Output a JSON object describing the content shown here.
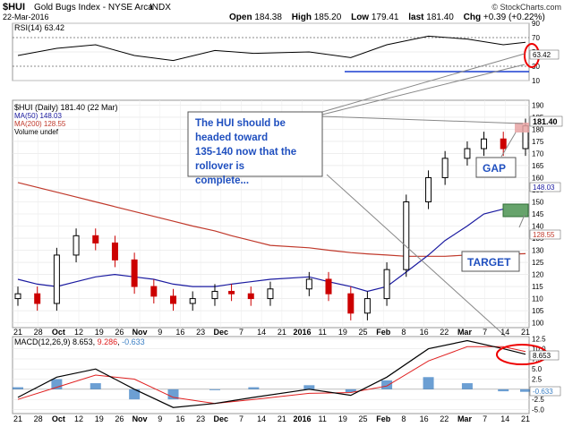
{
  "header": {
    "symbol": "$HUI",
    "name": "Gold Bugs Index - NYSE Arca",
    "exchange": "INDX",
    "date": "22-Mar-2016",
    "open_label": "Open",
    "open": "184.38",
    "high_label": "High",
    "high": "185.20",
    "low_label": "Low",
    "low": "179.41",
    "last_label": "last",
    "last": "181.40",
    "chg_label": "Chg",
    "chg": "+0.39 (+0.22%)",
    "credit": "© StockCharts.com"
  },
  "rsi": {
    "legend": "RSI(14) 63.42",
    "value_tag": "63.42",
    "ticks": [
      "90",
      "70",
      "50",
      "30",
      "10"
    ]
  },
  "price": {
    "legend": {
      "main": "$HUI (Daily) 181.40 (22 Mar)",
      "ma50": "MA(50) 148.03",
      "ma200": "MA(200) 128.55",
      "volume": "Volume undef"
    },
    "last_tag": "181.40",
    "ma50_tag": "148.03",
    "ma200_tag": "128.55",
    "ticks": [
      "190",
      "185",
      "180",
      "175",
      "170",
      "165",
      "160",
      "155",
      "150",
      "145",
      "140",
      "135",
      "130",
      "125",
      "120",
      "115",
      "110",
      "105",
      "100"
    ]
  },
  "annotations": {
    "forecast": "The HUI should be headed toward 135-140 now that the rollover is complete...",
    "gap": "GAP",
    "target": "TARGET"
  },
  "macd": {
    "legend_label": "MACD(12,26,9)",
    "macd_val": "8.653",
    "signal_val": "9.286",
    "hist_val": "-0.633",
    "value_tag": "8.653",
    "hist_tag": "-0.633",
    "ticks": [
      "12.5",
      "10.0",
      "7.5",
      "5.0",
      "2.5",
      "0.0",
      "-2.5",
      "-5.0"
    ]
  },
  "xaxis": [
    "21",
    "28",
    "Oct",
    "12",
    "19",
    "26",
    "Nov",
    "9",
    "16",
    "23",
    "Dec",
    "7",
    "14",
    "21",
    "2016",
    "11",
    "19",
    "25",
    "Feb",
    "8",
    "16",
    "22",
    "Mar",
    "7",
    "14",
    "21"
  ],
  "colors": {
    "up": "#000000",
    "down": "#cc0000",
    "ma50": "#1a1aa0",
    "ma200": "#c0392b",
    "annot": "#1f4fbf",
    "highlight": "#e8a3a3",
    "target": "#66a36b",
    "signal": "#e02020",
    "hist": "#3b7fc4"
  },
  "chart_data": [
    {
      "type": "line",
      "name": "RSI(14)",
      "ylim": [
        10,
        90
      ],
      "x": [
        "2015-09-21",
        "2015-10-05",
        "2015-10-19",
        "2015-11-02",
        "2015-11-16",
        "2015-12-01",
        "2015-12-15",
        "2016-01-04",
        "2016-01-19",
        "2016-02-01",
        "2016-02-16",
        "2016-03-01",
        "2016-03-14",
        "2016-03-22"
      ],
      "values": [
        45,
        55,
        60,
        45,
        38,
        52,
        48,
        50,
        42,
        60,
        72,
        68,
        60,
        63.42
      ],
      "reference_lines": [
        70,
        30
      ]
    },
    {
      "type": "candlestick",
      "title": "$HUI (Daily) 181.40 (22 Mar)",
      "ylim": [
        98,
        192
      ],
      "x": [
        "2015-09-21",
        "2015-09-28",
        "2015-10-05",
        "2015-10-12",
        "2015-10-19",
        "2015-10-26",
        "2015-11-02",
        "2015-11-09",
        "2015-11-16",
        "2015-11-23",
        "2015-12-01",
        "2015-12-07",
        "2015-12-14",
        "2015-12-21",
        "2016-01-04",
        "2016-01-11",
        "2016-01-19",
        "2016-01-25",
        "2016-02-01",
        "2016-02-08",
        "2016-02-16",
        "2016-02-22",
        "2016-03-01",
        "2016-03-07",
        "2016-03-14",
        "2016-03-22"
      ],
      "close": [
        112,
        108,
        128,
        136,
        133,
        126,
        115,
        111,
        108,
        110,
        113,
        112,
        110,
        114,
        118,
        112,
        104,
        110,
        122,
        150,
        160,
        168,
        172,
        176,
        172,
        181.4
      ],
      "series": [
        {
          "name": "MA(50)",
          "values": [
            118,
            116,
            115,
            117,
            119,
            120,
            119,
            118,
            116,
            115,
            115,
            116,
            117,
            118,
            119,
            117,
            115,
            113,
            115,
            121,
            128,
            134,
            140,
            145,
            147,
            148.03
          ]
        },
        {
          "name": "MA(200)",
          "values": [
            158,
            156,
            154,
            152,
            150,
            148,
            146,
            144,
            142,
            140,
            138,
            136,
            134,
            132,
            131,
            130,
            129,
            128.5,
            128,
            127.5,
            127.5,
            127.5,
            128,
            128,
            128.3,
            128.55
          ]
        }
      ],
      "annotations": {
        "gap_zone": [
          176,
          180
        ],
        "target_zone": [
          135,
          140
        ]
      }
    },
    {
      "type": "line",
      "name": "MACD(12,26,9)",
      "ylim": [
        -6,
        13
      ],
      "x": [
        "2015-09-21",
        "2015-10-05",
        "2015-10-19",
        "2015-11-02",
        "2015-11-16",
        "2015-12-01",
        "2015-12-15",
        "2016-01-04",
        "2016-01-19",
        "2016-02-01",
        "2016-02-16",
        "2016-03-01",
        "2016-03-14",
        "2016-03-22"
      ],
      "series": [
        {
          "name": "MACD",
          "values": [
            -2,
            3,
            5,
            0,
            -4.5,
            -3.5,
            -2,
            0,
            -1.5,
            3,
            10,
            12,
            10,
            8.653
          ]
        },
        {
          "name": "Signal",
          "values": [
            -2.5,
            0.5,
            3.5,
            2.5,
            -2,
            -3.5,
            -2.5,
            -1,
            -0.8,
            0.8,
            7,
            10.5,
            10.5,
            9.286
          ]
        },
        {
          "name": "Histogram",
          "values": [
            0.5,
            2.5,
            1.5,
            -2.5,
            -2.5,
            0,
            0.5,
            1,
            -0.7,
            2.2,
            3,
            1.5,
            -0.5,
            -0.633
          ]
        }
      ]
    }
  ]
}
